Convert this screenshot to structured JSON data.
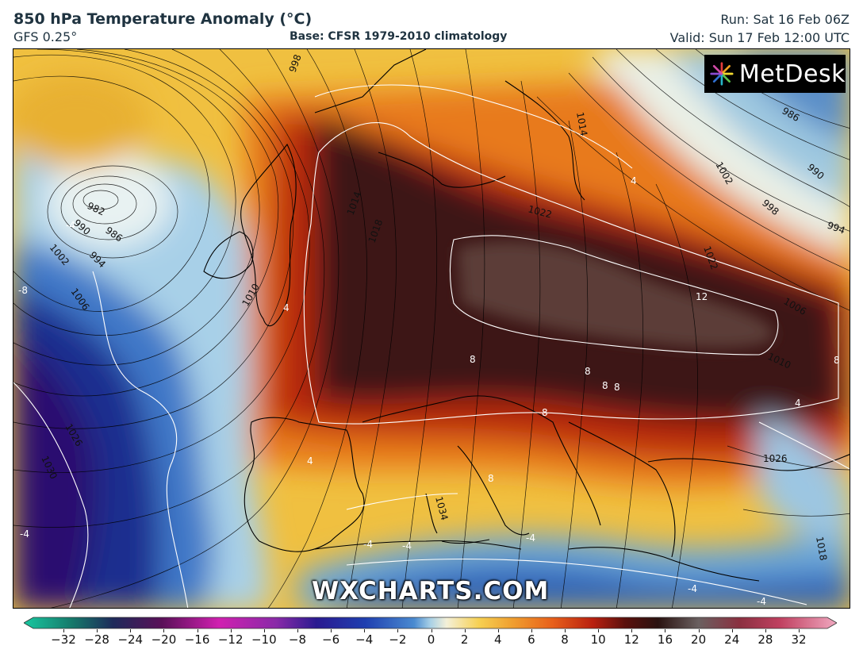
{
  "header": {
    "title": "850 hPa Temperature Anomaly (°C)",
    "model": "GFS 0.25°",
    "base": "Base: CFSR 1979-2010 climatology",
    "run": "Run: Sat 16 Feb 06Z",
    "valid": "Valid: Sun 17 Feb 12:00 UTC"
  },
  "logo": {
    "text": "MetDesk",
    "icon": "metdesk-burst-icon"
  },
  "watermark": "WXCHARTS.COM",
  "map": {
    "region": "Europe / North Atlantic",
    "isobar_labels": [
      "998",
      "982",
      "986",
      "990",
      "994",
      "1002",
      "1006",
      "1010",
      "1014",
      "1018",
      "1022",
      "1026",
      "1030",
      "1034",
      "1018",
      "1026",
      "986",
      "990",
      "994",
      "998",
      "1002",
      "1006",
      "1010",
      "1014",
      "1022",
      "1018"
    ],
    "anomaly_labels": [
      "-4",
      "-8",
      "4",
      "8",
      "8",
      "8",
      "8",
      "12",
      "4",
      "4",
      "8",
      "-4",
      "-4",
      "-4",
      "-4",
      "4",
      "8",
      "8",
      "-4",
      "-4"
    ],
    "colors": {
      "deep_warm": "#3a1412",
      "peak_warm": "#5a3a36",
      "red": "#b82a10",
      "orange": "#e8761a",
      "yellow": "#f3c23c",
      "pale": "#f4ebc8",
      "light_blue": "#a6cfe6",
      "blue": "#3a72c6",
      "navy": "#1a2a8a",
      "indigo": "#2a0f70"
    }
  },
  "colorbar": {
    "ticks": [
      "−32",
      "−28",
      "−24",
      "−20",
      "−16",
      "−12",
      "−10",
      "−8",
      "−6",
      "−4",
      "−2",
      "0",
      "2",
      "4",
      "6",
      "8",
      "10",
      "12",
      "16",
      "20",
      "24",
      "28",
      "32"
    ]
  }
}
